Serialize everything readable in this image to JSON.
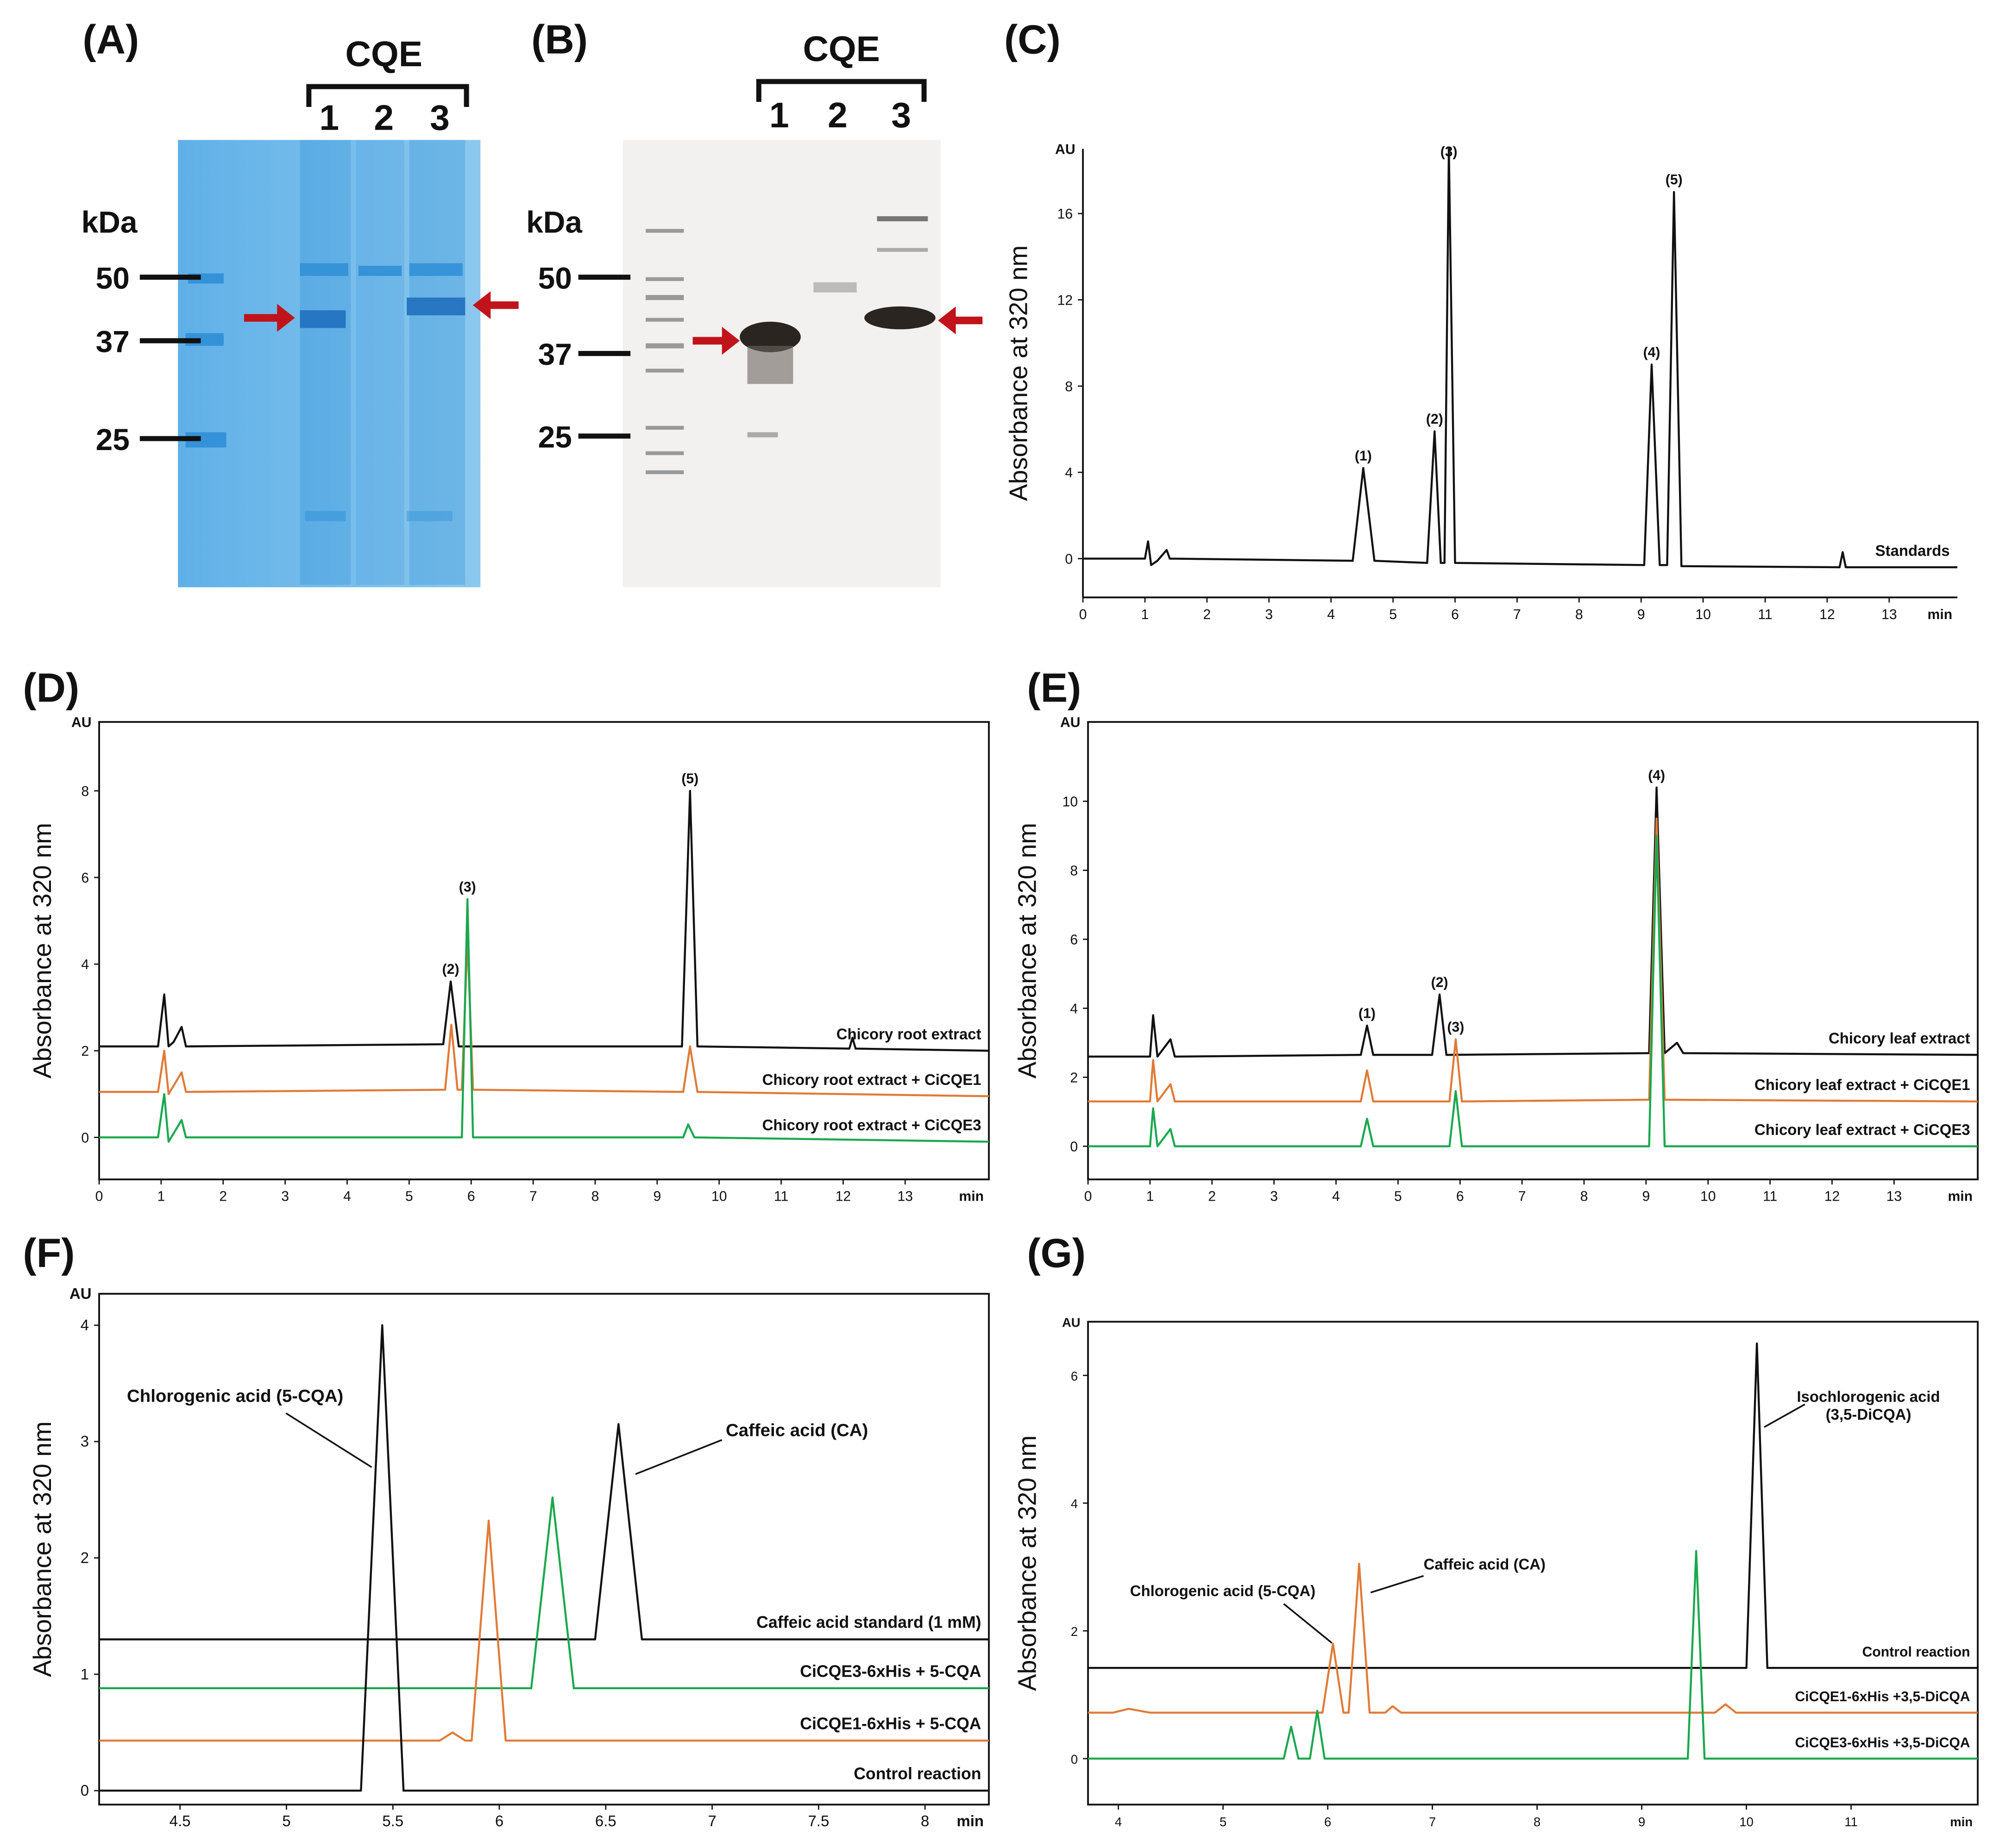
{
  "gels": [
    {
      "label": "(A)",
      "group": "CQE",
      "lanes": [
        "1",
        "2",
        "3"
      ],
      "unit": "kDa",
      "markers": [
        "50",
        "37",
        "25"
      ]
    },
    {
      "label": "(B)",
      "group": "CQE",
      "lanes": [
        "1",
        "2",
        "3"
      ],
      "unit": "kDa",
      "markers": [
        "50",
        "37",
        "25"
      ]
    }
  ],
  "chart_data": [
    {
      "type": "line",
      "label": "(C)",
      "ylabel": "Absorbance at 320 nm",
      "yunit": "AU",
      "xunit": "min",
      "xlim": [
        0,
        14.1
      ],
      "xticks": [
        0,
        1,
        2,
        3,
        4,
        5,
        6,
        7,
        8,
        9,
        10,
        11,
        12,
        13
      ],
      "ylim": [
        -1.8,
        19
      ],
      "yticks": [
        0,
        4,
        8,
        12,
        16
      ],
      "series": [
        {
          "name": "Standards",
          "color": "#111111",
          "x": [
            0,
            1.0,
            1.05,
            1.1,
            1.2,
            1.35,
            1.4,
            4.35,
            4.52,
            4.7,
            5.55,
            5.67,
            5.77,
            5.83,
            5.9,
            6.0,
            9.05,
            9.17,
            9.3,
            9.42,
            9.53,
            9.65,
            12.2,
            12.25,
            12.3,
            14.1
          ],
          "values": [
            0,
            0,
            0.8,
            -0.3,
            -0.1,
            0.4,
            0,
            -0.1,
            4.2,
            -0.1,
            -0.2,
            5.9,
            -0.2,
            -0.2,
            19,
            -0.2,
            -0.3,
            9.0,
            -0.3,
            -0.3,
            17,
            -0.35,
            -0.4,
            0.3,
            -0.4,
            -0.4
          ]
        }
      ],
      "peak_labels": [
        {
          "text": "(1)",
          "x": 4.52,
          "y": 4.2,
          "color": "#111111"
        },
        {
          "text": "(2)",
          "x": 5.67,
          "y": 5.9,
          "color": "#111111"
        },
        {
          "text": "(3)",
          "x": 5.9,
          "y": 18.3,
          "color": "#c0622a"
        },
        {
          "text": "(4)",
          "x": 9.17,
          "y": 9.0,
          "color": "#111111"
        },
        {
          "text": "(5)",
          "x": 9.53,
          "y": 17,
          "color": "#111111"
        }
      ]
    },
    {
      "type": "line",
      "label": "(D)",
      "ylabel": "Absorbance at 320 nm",
      "yunit": "AU",
      "xunit": "min",
      "xlim": [
        0,
        14.35
      ],
      "xticks": [
        0,
        1,
        2,
        3,
        4,
        5,
        6,
        7,
        8,
        9,
        10,
        11,
        12,
        13
      ],
      "ylim": [
        -0.97,
        9.59
      ],
      "yticks": [
        0,
        2,
        4,
        6,
        8
      ],
      "series": [
        {
          "name": "Chicory root extract",
          "color": "#111111",
          "x": [
            0,
            0.95,
            1.05,
            1.12,
            1.2,
            1.33,
            1.4,
            5.55,
            5.67,
            5.8,
            9.4,
            9.53,
            9.65,
            12.1,
            12.15,
            12.2,
            14.35
          ],
          "values": [
            2.1,
            2.1,
            3.3,
            2.1,
            2.2,
            2.55,
            2.1,
            2.15,
            3.6,
            2.1,
            2.1,
            8.0,
            2.1,
            2.05,
            2.3,
            2.05,
            2.0
          ]
        },
        {
          "name": "Chicory root extract + CiCQE1",
          "color": "#e07b39",
          "x": [
            0,
            0.95,
            1.05,
            1.12,
            1.33,
            1.4,
            5.58,
            5.68,
            5.78,
            5.85,
            5.94,
            6.03,
            9.42,
            9.53,
            9.65,
            14.35
          ],
          "values": [
            1.05,
            1.05,
            2.0,
            1.0,
            1.5,
            1.05,
            1.1,
            2.6,
            1.1,
            1.1,
            4.6,
            1.1,
            1.05,
            2.1,
            1.05,
            0.95
          ]
        },
        {
          "name": "Chicory root extract + CiCQE3",
          "color": "#1aa84f",
          "x": [
            0,
            0.95,
            1.05,
            1.12,
            1.33,
            1.4,
            5.85,
            5.94,
            6.03,
            9.42,
            9.5,
            9.6,
            14.35
          ],
          "values": [
            0,
            0,
            1.0,
            -0.1,
            0.4,
            0,
            0,
            5.5,
            0,
            0,
            0.3,
            0,
            -0.1
          ]
        }
      ],
      "peak_labels": [
        {
          "text": "(2)",
          "x": 5.67,
          "y": 3.6,
          "color": "#111111"
        },
        {
          "text": "(3)",
          "x": 5.94,
          "y": 5.5,
          "color": "#c0622a"
        },
        {
          "text": "(5)",
          "x": 9.53,
          "y": 8.0,
          "color": "#111111"
        }
      ]
    },
    {
      "type": "line",
      "label": "(E)",
      "ylabel": "Absorbance at 320 nm",
      "yunit": "AU",
      "xunit": "min",
      "xlim": [
        0,
        14.35
      ],
      "xticks": [
        0,
        1,
        2,
        3,
        4,
        5,
        6,
        7,
        8,
        9,
        10,
        11,
        12,
        13
      ],
      "ylim": [
        -0.96,
        12.3
      ],
      "yticks": [
        0,
        2,
        4,
        6,
        8,
        10
      ],
      "series": [
        {
          "name": "Chicory leaf extract",
          "color": "#111111",
          "x": [
            0,
            1.0,
            1.05,
            1.12,
            1.33,
            1.4,
            4.4,
            4.5,
            4.6,
            5.55,
            5.67,
            5.78,
            9.05,
            9.17,
            9.3,
            9.5,
            9.6,
            14.35
          ],
          "values": [
            2.6,
            2.6,
            3.8,
            2.6,
            3.1,
            2.6,
            2.65,
            3.5,
            2.65,
            2.65,
            4.4,
            2.65,
            2.7,
            10.4,
            2.7,
            3.0,
            2.7,
            2.65
          ]
        },
        {
          "name": "Chicory leaf extract + CiCQE1",
          "color": "#e07b39",
          "x": [
            0,
            1.0,
            1.05,
            1.12,
            1.33,
            1.4,
            4.4,
            4.5,
            4.6,
            5.83,
            5.93,
            6.03,
            9.05,
            9.17,
            9.3,
            14.35
          ],
          "values": [
            1.3,
            1.3,
            2.5,
            1.3,
            1.8,
            1.3,
            1.3,
            2.2,
            1.3,
            1.3,
            3.1,
            1.3,
            1.35,
            9.5,
            1.35,
            1.3
          ]
        },
        {
          "name": "Chicory leaf extract + CiCQE3",
          "color": "#1aa84f",
          "x": [
            0,
            1.0,
            1.05,
            1.12,
            1.33,
            1.4,
            4.4,
            4.5,
            4.6,
            5.83,
            5.93,
            6.03,
            9.05,
            9.17,
            9.3,
            14.35
          ],
          "values": [
            0,
            0,
            1.1,
            0,
            0.5,
            0,
            0,
            0.8,
            0,
            0,
            1.6,
            0,
            0,
            9.0,
            0,
            0
          ]
        }
      ],
      "peak_labels": [
        {
          "text": "(1)",
          "x": 4.5,
          "y": 3.5,
          "color": "#111111"
        },
        {
          "text": "(2)",
          "x": 5.67,
          "y": 4.4,
          "color": "#111111"
        },
        {
          "text": "(3)",
          "x": 5.93,
          "y": 3.1,
          "color": "#c0622a"
        },
        {
          "text": "(4)",
          "x": 9.17,
          "y": 10.4,
          "color": "#111111"
        }
      ]
    },
    {
      "type": "line",
      "label": "(F)",
      "ylabel": "Absorbance at 320 nm",
      "yunit": "AU",
      "xunit": "min",
      "xlim": [
        4.12,
        8.3
      ],
      "xticks": [
        4.5,
        5,
        5.5,
        6,
        6.5,
        7,
        7.5,
        8
      ],
      "ylim": [
        -0.12,
        4.27
      ],
      "yticks": [
        0,
        1,
        2,
        3,
        4
      ],
      "series": [
        {
          "name": "Caffeic acid standard (1 mM)",
          "color": "#111111",
          "x": [
            4.12,
            6.45,
            6.56,
            6.67,
            8.3
          ],
          "values": [
            1.3,
            1.3,
            3.15,
            1.3,
            1.3
          ]
        },
        {
          "name": "CiCQE3-6xHis + 5-CQA",
          "color": "#1aa84f",
          "x": [
            4.12,
            6.15,
            6.25,
            6.35,
            8.3
          ],
          "values": [
            0.88,
            0.88,
            2.52,
            0.88,
            0.88
          ]
        },
        {
          "name": "CiCQE1-6xHis + 5-CQA",
          "color": "#e07b39",
          "x": [
            4.12,
            5.72,
            5.78,
            5.84,
            5.87,
            5.95,
            6.03,
            8.3
          ],
          "values": [
            0.43,
            0.43,
            0.5,
            0.43,
            0.43,
            2.32,
            0.43,
            0.43
          ]
        },
        {
          "name": "Control reaction",
          "color": "#111111",
          "x": [
            4.12,
            5.35,
            5.45,
            5.55,
            8.3
          ],
          "values": [
            0,
            0,
            4.0,
            0,
            0
          ]
        }
      ],
      "callouts": [
        {
          "lines": [
            "Chlorogenic acid (5-CQA)"
          ],
          "x": 5.4,
          "y": 2.78
        },
        {
          "lines": [
            "Caffeic acid (CA)"
          ],
          "x": 6.64,
          "y": 2.72
        }
      ]
    },
    {
      "type": "line",
      "label": "(G)",
      "ylabel": "Absorbance at 320 nm",
      "yunit": "AU",
      "xunit": "min",
      "xlim": [
        3.71,
        12.21
      ],
      "xticks": [
        4,
        5,
        6,
        7,
        8,
        9,
        10,
        11
      ],
      "ylim": [
        -0.72,
        6.84
      ],
      "yticks": [
        0,
        2,
        4,
        6
      ],
      "series": [
        {
          "name": "Control reaction",
          "color": "#111111",
          "x": [
            3.71,
            10.0,
            10.1,
            10.2,
            12.21
          ],
          "values": [
            1.42,
            1.42,
            6.5,
            1.42,
            1.42
          ]
        },
        {
          "name": "CiCQE1-6xHis +3,5-DiCQA",
          "color": "#e07b39",
          "x": [
            3.71,
            3.95,
            4.1,
            4.3,
            5.95,
            6.05,
            6.15,
            6.2,
            6.3,
            6.4,
            6.55,
            6.62,
            6.7,
            9.7,
            9.8,
            9.9,
            12.21
          ],
          "values": [
            0.72,
            0.72,
            0.78,
            0.72,
            0.72,
            1.8,
            0.72,
            0.72,
            3.05,
            0.72,
            0.72,
            0.82,
            0.72,
            0.72,
            0.85,
            0.72,
            0.72
          ]
        },
        {
          "name": "CiCQE3-6xHis +3,5-DiCQA",
          "color": "#1aa84f",
          "x": [
            3.71,
            5.58,
            5.65,
            5.72,
            5.83,
            5.9,
            5.97,
            9.44,
            9.52,
            9.6,
            12.21
          ],
          "values": [
            0,
            0,
            0.5,
            0,
            0,
            0.75,
            0,
            0,
            3.25,
            0,
            0
          ]
        }
      ],
      "callouts": [
        {
          "lines": [
            "Isochlorogenic acid",
            "(3,5-DiCQA)"
          ],
          "x": 10.17,
          "y": 5.19
        },
        {
          "lines": [
            "Chlorogenic acid (5-CQA)"
          ],
          "x": 6.04,
          "y": 1.81
        },
        {
          "lines": [
            "Caffeic acid (CA)"
          ],
          "x": 6.41,
          "y": 2.6
        }
      ]
    }
  ]
}
